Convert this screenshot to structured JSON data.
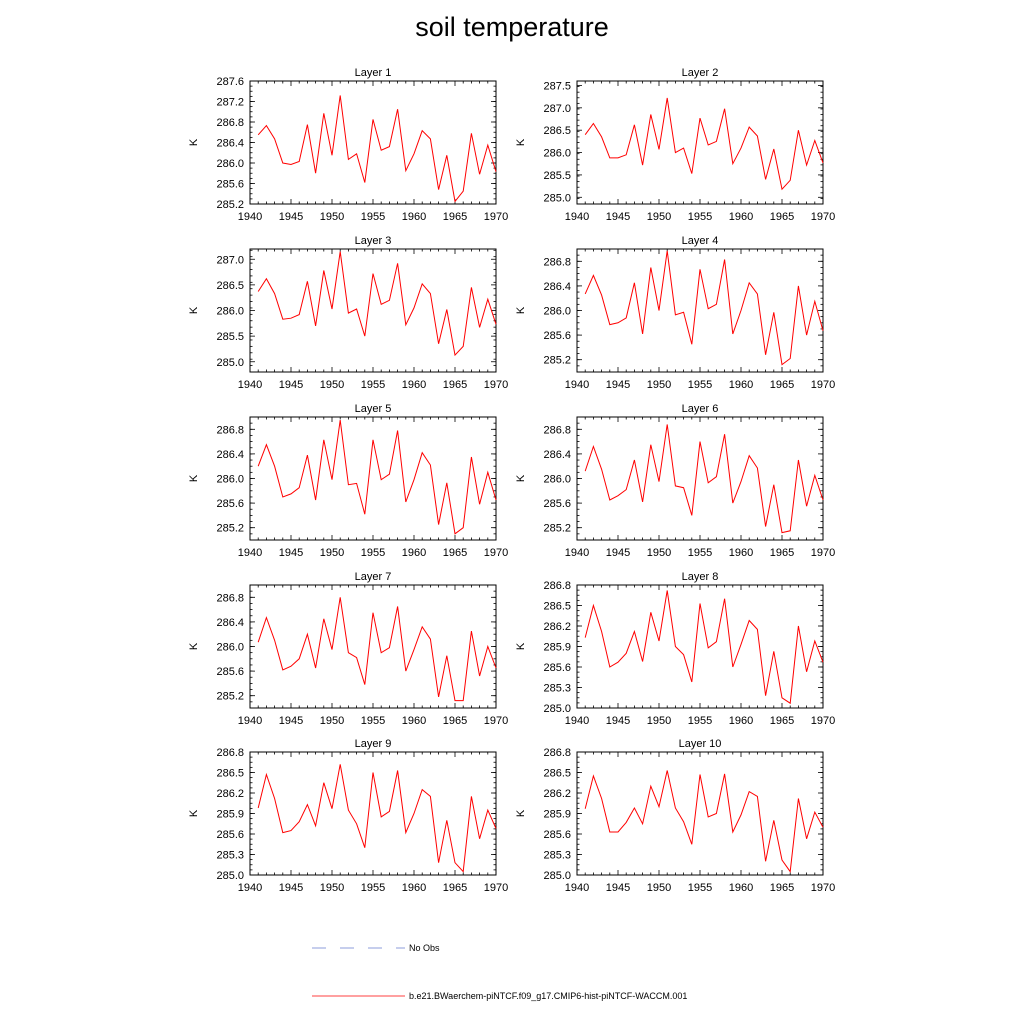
{
  "title": "soil temperature",
  "colors": {
    "model_line": "#ff0000",
    "obs_line": "#6a7fd0",
    "axes": "#000000"
  },
  "legend": {
    "obs_label": "No Obs",
    "model_label": "b.e21.BWaerchem-piNTCF.f09_g17.CMIP6-hist-piNTCF-WACCM.001"
  },
  "chart_data": [
    {
      "type": "line",
      "title": "Layer 1",
      "ylabel": "K",
      "xlim": [
        1940,
        1970
      ],
      "ylim": [
        285.2,
        287.6
      ],
      "xticks": [
        1940,
        1945,
        1950,
        1955,
        1960,
        1965,
        1970
      ],
      "yticks": [
        285.2,
        285.6,
        286.0,
        286.4,
        286.8,
        287.2,
        287.6
      ],
      "ytick_labels": [
        "285.2",
        "285.6",
        "286.0",
        "286.4",
        "286.8",
        "287.2",
        "287.6"
      ],
      "series": [
        {
          "x": [
            1941,
            1942,
            1943,
            1944,
            1945,
            1946,
            1947,
            1948,
            1949,
            1950,
            1951,
            1952,
            1953,
            1954,
            1955,
            1956,
            1957,
            1958,
            1959,
            1960,
            1961,
            1962,
            1963,
            1964,
            1965,
            1966,
            1967,
            1968,
            1969,
            1970
          ],
          "values": [
            286.55,
            286.73,
            286.47,
            286.0,
            285.97,
            286.03,
            286.75,
            285.8,
            286.97,
            286.15,
            287.32,
            286.07,
            286.18,
            285.62,
            286.85,
            286.25,
            286.32,
            287.05,
            285.85,
            286.18,
            286.63,
            286.47,
            285.48,
            286.15,
            285.25,
            285.45,
            286.58,
            285.78,
            286.35,
            285.83
          ]
        }
      ]
    },
    {
      "type": "line",
      "title": "Layer 2",
      "ylabel": "K",
      "xlim": [
        1940,
        1970
      ],
      "ylim": [
        284.85,
        287.6
      ],
      "xticks": [
        1940,
        1945,
        1950,
        1955,
        1960,
        1965,
        1970
      ],
      "yticks": [
        285.0,
        285.5,
        286.0,
        286.5,
        287.0,
        287.5
      ],
      "ytick_labels": [
        "285.0",
        "285.5",
        "286.0",
        "286.5",
        "287.0",
        "287.5"
      ],
      "series": [
        {
          "x": [
            1941,
            1942,
            1943,
            1944,
            1945,
            1946,
            1947,
            1948,
            1949,
            1950,
            1951,
            1952,
            1953,
            1954,
            1955,
            1956,
            1957,
            1958,
            1959,
            1960,
            1961,
            1962,
            1963,
            1964,
            1965,
            1966,
            1967,
            1968,
            1969,
            1970
          ],
          "values": [
            286.4,
            286.65,
            286.35,
            285.88,
            285.88,
            285.95,
            286.62,
            285.72,
            286.85,
            286.07,
            287.22,
            286.0,
            286.1,
            285.53,
            286.77,
            286.17,
            286.25,
            286.98,
            285.75,
            286.1,
            286.57,
            286.37,
            285.4,
            286.08,
            285.18,
            285.38,
            286.5,
            285.72,
            286.27,
            285.77
          ]
        }
      ]
    },
    {
      "type": "line",
      "title": "Layer 3",
      "ylabel": "K",
      "xlim": [
        1940,
        1970
      ],
      "ylim": [
        284.8,
        287.2
      ],
      "xticks": [
        1940,
        1945,
        1950,
        1955,
        1960,
        1965,
        1970
      ],
      "yticks": [
        285.0,
        285.5,
        286.0,
        286.5,
        287.0
      ],
      "ytick_labels": [
        "285.0",
        "285.5",
        "286.0",
        "286.5",
        "287.0"
      ],
      "series": [
        {
          "x": [
            1941,
            1942,
            1943,
            1944,
            1945,
            1946,
            1947,
            1948,
            1949,
            1950,
            1951,
            1952,
            1953,
            1954,
            1955,
            1956,
            1957,
            1958,
            1959,
            1960,
            1961,
            1962,
            1963,
            1964,
            1965,
            1966,
            1967,
            1968,
            1969,
            1970
          ],
          "values": [
            286.37,
            286.62,
            286.33,
            285.83,
            285.85,
            285.92,
            286.57,
            285.7,
            286.78,
            286.03,
            287.15,
            285.95,
            286.03,
            285.5,
            286.72,
            286.12,
            286.2,
            286.92,
            285.72,
            286.05,
            286.52,
            286.33,
            285.35,
            286.02,
            285.13,
            285.3,
            286.45,
            285.67,
            286.22,
            285.73
          ]
        }
      ]
    },
    {
      "type": "line",
      "title": "Layer 4",
      "ylabel": "K",
      "xlim": [
        1940,
        1970
      ],
      "ylim": [
        285.0,
        287.0
      ],
      "xticks": [
        1940,
        1945,
        1950,
        1955,
        1960,
        1965,
        1970
      ],
      "yticks": [
        285.2,
        285.6,
        286.0,
        286.4,
        286.8
      ],
      "ytick_labels": [
        "285.2",
        "285.6",
        "286.0",
        "286.4",
        "286.8"
      ],
      "series": [
        {
          "x": [
            1941,
            1942,
            1943,
            1944,
            1945,
            1946,
            1947,
            1948,
            1949,
            1950,
            1951,
            1952,
            1953,
            1954,
            1955,
            1956,
            1957,
            1958,
            1959,
            1960,
            1961,
            1962,
            1963,
            1964,
            1965,
            1966,
            1967,
            1968,
            1969,
            1970
          ],
          "values": [
            286.27,
            286.57,
            286.25,
            285.77,
            285.8,
            285.88,
            286.45,
            285.62,
            286.7,
            286.0,
            286.97,
            285.93,
            285.97,
            285.45,
            286.67,
            286.03,
            286.1,
            286.83,
            285.62,
            286.0,
            286.45,
            286.27,
            285.28,
            285.97,
            285.12,
            285.22,
            286.4,
            285.6,
            286.15,
            285.67
          ]
        }
      ]
    },
    {
      "type": "line",
      "title": "Layer 5",
      "ylabel": "K",
      "xlim": [
        1940,
        1970
      ],
      "ylim": [
        285.0,
        287.0
      ],
      "xticks": [
        1940,
        1945,
        1950,
        1955,
        1960,
        1965,
        1970
      ],
      "yticks": [
        285.2,
        285.6,
        286.0,
        286.4,
        286.8
      ],
      "ytick_labels": [
        "285.2",
        "285.6",
        "286.0",
        "286.4",
        "286.8"
      ],
      "series": [
        {
          "x": [
            1941,
            1942,
            1943,
            1944,
            1945,
            1946,
            1947,
            1948,
            1949,
            1950,
            1951,
            1952,
            1953,
            1954,
            1955,
            1956,
            1957,
            1958,
            1959,
            1960,
            1961,
            1962,
            1963,
            1964,
            1965,
            1966,
            1967,
            1968,
            1969,
            1970
          ],
          "values": [
            286.2,
            286.55,
            286.2,
            285.7,
            285.75,
            285.85,
            286.38,
            285.65,
            286.63,
            285.98,
            286.95,
            285.9,
            285.92,
            285.42,
            286.63,
            285.98,
            286.07,
            286.78,
            285.62,
            285.98,
            286.42,
            286.22,
            285.25,
            285.93,
            285.1,
            285.2,
            286.35,
            285.58,
            286.1,
            285.65
          ]
        }
      ]
    },
    {
      "type": "line",
      "title": "Layer 6",
      "ylabel": "K",
      "xlim": [
        1940,
        1970
      ],
      "ylim": [
        285.0,
        287.0
      ],
      "xticks": [
        1940,
        1945,
        1950,
        1955,
        1960,
        1965,
        1970
      ],
      "yticks": [
        285.2,
        285.6,
        286.0,
        286.4,
        286.8
      ],
      "ytick_labels": [
        "285.2",
        "285.6",
        "286.0",
        "286.4",
        "286.8"
      ],
      "series": [
        {
          "x": [
            1941,
            1942,
            1943,
            1944,
            1945,
            1946,
            1947,
            1948,
            1949,
            1950,
            1951,
            1952,
            1953,
            1954,
            1955,
            1956,
            1957,
            1958,
            1959,
            1960,
            1961,
            1962,
            1963,
            1964,
            1965,
            1966,
            1967,
            1968,
            1969,
            1970
          ],
          "values": [
            286.12,
            286.52,
            286.15,
            285.65,
            285.72,
            285.82,
            286.3,
            285.62,
            286.55,
            285.95,
            286.88,
            285.88,
            285.85,
            285.4,
            286.6,
            285.93,
            286.03,
            286.72,
            285.6,
            285.95,
            286.37,
            286.17,
            285.22,
            285.9,
            285.12,
            285.15,
            286.3,
            285.55,
            286.05,
            285.65
          ]
        }
      ]
    },
    {
      "type": "line",
      "title": "Layer 7",
      "ylabel": "K",
      "xlim": [
        1940,
        1970
      ],
      "ylim": [
        285.0,
        287.0
      ],
      "xticks": [
        1940,
        1945,
        1950,
        1955,
        1960,
        1965,
        1970
      ],
      "yticks": [
        285.2,
        285.6,
        286.0,
        286.4,
        286.8
      ],
      "ytick_labels": [
        "285.2",
        "285.6",
        "286.0",
        "286.4",
        "286.8"
      ],
      "series": [
        {
          "x": [
            1941,
            1942,
            1943,
            1944,
            1945,
            1946,
            1947,
            1948,
            1949,
            1950,
            1951,
            1952,
            1953,
            1954,
            1955,
            1956,
            1957,
            1958,
            1959,
            1960,
            1961,
            1962,
            1963,
            1964,
            1965,
            1966,
            1967,
            1968,
            1969,
            1970
          ],
          "values": [
            286.07,
            286.47,
            286.1,
            285.62,
            285.68,
            285.8,
            286.2,
            285.65,
            286.45,
            285.95,
            286.8,
            285.9,
            285.82,
            285.38,
            286.55,
            285.9,
            285.98,
            286.65,
            285.6,
            285.95,
            286.32,
            286.12,
            285.18,
            285.85,
            285.12,
            285.12,
            286.25,
            285.52,
            286.0,
            285.65
          ]
        }
      ]
    },
    {
      "type": "line",
      "title": "Layer 8",
      "ylabel": "K",
      "xlim": [
        1940,
        1970
      ],
      "ylim": [
        285.0,
        286.8
      ],
      "xticks": [
        1940,
        1945,
        1950,
        1955,
        1960,
        1965,
        1970
      ],
      "yticks": [
        285.0,
        285.3,
        285.6,
        285.9,
        286.2,
        286.5,
        286.8
      ],
      "ytick_labels": [
        "285.0",
        "285.3",
        "285.6",
        "285.9",
        "286.2",
        "286.5",
        "286.8"
      ],
      "series": [
        {
          "x": [
            1941,
            1942,
            1943,
            1944,
            1945,
            1946,
            1947,
            1948,
            1949,
            1950,
            1951,
            1952,
            1953,
            1954,
            1955,
            1956,
            1957,
            1958,
            1959,
            1960,
            1961,
            1962,
            1963,
            1964,
            1965,
            1966,
            1967,
            1968,
            1969,
            1970
          ],
          "values": [
            286.03,
            286.5,
            286.12,
            285.6,
            285.67,
            285.8,
            286.12,
            285.68,
            286.4,
            285.98,
            286.72,
            285.9,
            285.78,
            285.38,
            286.53,
            285.88,
            285.97,
            286.6,
            285.6,
            285.93,
            286.28,
            286.15,
            285.18,
            285.83,
            285.15,
            285.07,
            286.2,
            285.53,
            285.98,
            285.67
          ]
        }
      ]
    },
    {
      "type": "line",
      "title": "Layer 9",
      "ylabel": "K",
      "xlim": [
        1940,
        1970
      ],
      "ylim": [
        285.0,
        286.8
      ],
      "xticks": [
        1940,
        1945,
        1950,
        1955,
        1960,
        1965,
        1970
      ],
      "yticks": [
        285.0,
        285.3,
        285.6,
        285.9,
        286.2,
        286.5,
        286.8
      ],
      "ytick_labels": [
        "285.0",
        "285.3",
        "285.6",
        "285.9",
        "286.2",
        "286.5",
        "286.8"
      ],
      "series": [
        {
          "x": [
            1941,
            1942,
            1943,
            1944,
            1945,
            1946,
            1947,
            1948,
            1949,
            1950,
            1951,
            1952,
            1953,
            1954,
            1955,
            1956,
            1957,
            1958,
            1959,
            1960,
            1961,
            1962,
            1963,
            1964,
            1965,
            1966,
            1967,
            1968,
            1969,
            1970
          ],
          "values": [
            285.98,
            286.47,
            286.12,
            285.62,
            285.65,
            285.78,
            286.03,
            285.72,
            286.35,
            285.97,
            286.62,
            285.95,
            285.75,
            285.4,
            286.5,
            285.85,
            285.93,
            286.53,
            285.62,
            285.9,
            286.25,
            286.15,
            285.18,
            285.8,
            285.18,
            285.05,
            286.15,
            285.53,
            285.95,
            285.68
          ]
        }
      ]
    },
    {
      "type": "line",
      "title": "Layer 10",
      "ylabel": "K",
      "xlim": [
        1940,
        1970
      ],
      "ylim": [
        285.0,
        286.8
      ],
      "xticks": [
        1940,
        1945,
        1950,
        1955,
        1960,
        1965,
        1970
      ],
      "yticks": [
        285.0,
        285.3,
        285.6,
        285.9,
        286.2,
        286.5,
        286.8
      ],
      "ytick_labels": [
        "285.0",
        "285.3",
        "285.6",
        "285.9",
        "286.2",
        "286.5",
        "286.8"
      ],
      "series": [
        {
          "x": [
            1941,
            1942,
            1943,
            1944,
            1945,
            1946,
            1947,
            1948,
            1949,
            1950,
            1951,
            1952,
            1953,
            1954,
            1955,
            1956,
            1957,
            1958,
            1959,
            1960,
            1961,
            1962,
            1963,
            1964,
            1965,
            1966,
            1967,
            1968,
            1969,
            1970
          ],
          "values": [
            285.97,
            286.45,
            286.12,
            285.63,
            285.63,
            285.77,
            285.98,
            285.75,
            286.3,
            286.0,
            286.53,
            285.98,
            285.78,
            285.45,
            286.47,
            285.85,
            285.9,
            286.48,
            285.63,
            285.88,
            286.22,
            286.15,
            285.2,
            285.8,
            285.22,
            285.05,
            286.12,
            285.53,
            285.92,
            285.7
          ]
        }
      ]
    }
  ]
}
